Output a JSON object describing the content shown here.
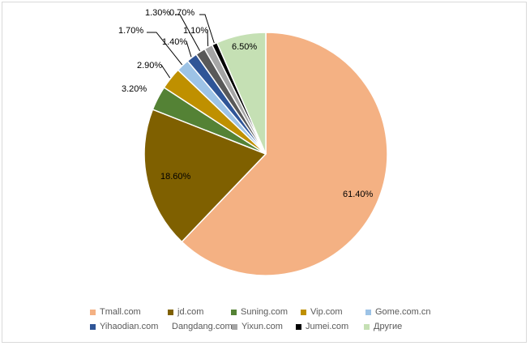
{
  "chart_data": {
    "type": "pie",
    "title": "",
    "categories": [
      "Tmall.com",
      "jd.com",
      "Suning.com",
      "Vip.com",
      "Gome.com.cn",
      "Yihaodian.com",
      "Dangdang.com",
      "Yixun.com",
      "Jumei.com",
      "Другие"
    ],
    "values": [
      61.4,
      18.6,
      3.2,
      2.9,
      1.7,
      1.4,
      1.3,
      1.1,
      0.7,
      6.5
    ],
    "data_labels": [
      "61.40%",
      "18.60%",
      "3.20%",
      "2.90%",
      "1.70%",
      "1.40%",
      "1.30%",
      "1.10%",
      "0.70%",
      "6.50%"
    ],
    "colors": [
      "#f4b183",
      "#7f6000",
      "#548235",
      "#bf9000",
      "#9dc3e6",
      "#2f5597",
      "#595959",
      "#a5a5a5",
      "#000000",
      "#c5e0b4"
    ],
    "start_angle": "12 o'clock",
    "direction": "clockwise",
    "legend_position": "bottom"
  }
}
